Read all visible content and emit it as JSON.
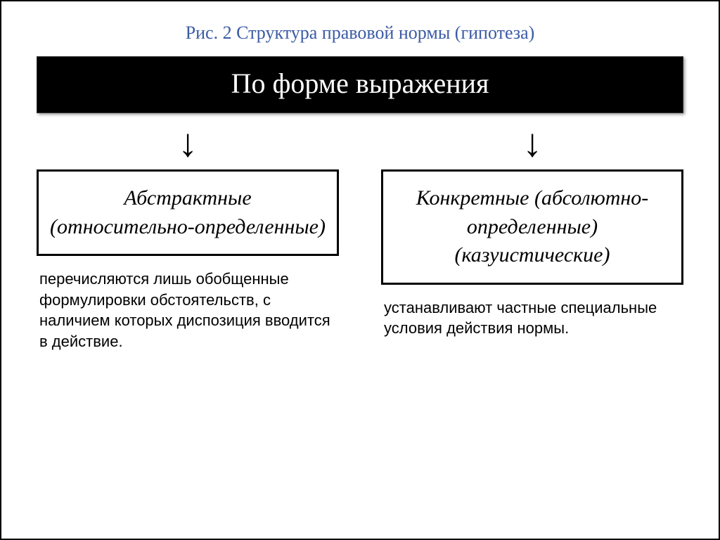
{
  "caption": {
    "text": "Рис. 2 Структура правовой нормы (гипотеза)",
    "color": "#3b5ba5",
    "fontsize": 26
  },
  "header": {
    "text": "По форме выражения",
    "bg": "#000000",
    "fg": "#ffffff",
    "fontsize": 40
  },
  "columns": [
    {
      "box_lines": "Абстрактные (относительно-определенные)",
      "desc": "перечисляются лишь обобщенные формулировки обстоятельств, с наличием которых диспозиция вводится в действие."
    },
    {
      "box_lines": "Конкретные (абсолютно-определенные) (казуистические)",
      "desc": "устанавливают частные специальные условия действия нормы."
    }
  ],
  "styling": {
    "page_border_color": "#000000",
    "box_border_color": "#000000",
    "box_border_width": 3,
    "box_font_style": "italic",
    "box_fontsize": 30,
    "desc_fontsize": 22,
    "arrow_glyph": "↓",
    "arrow_color": "#000000",
    "background_color": "#ffffff"
  }
}
